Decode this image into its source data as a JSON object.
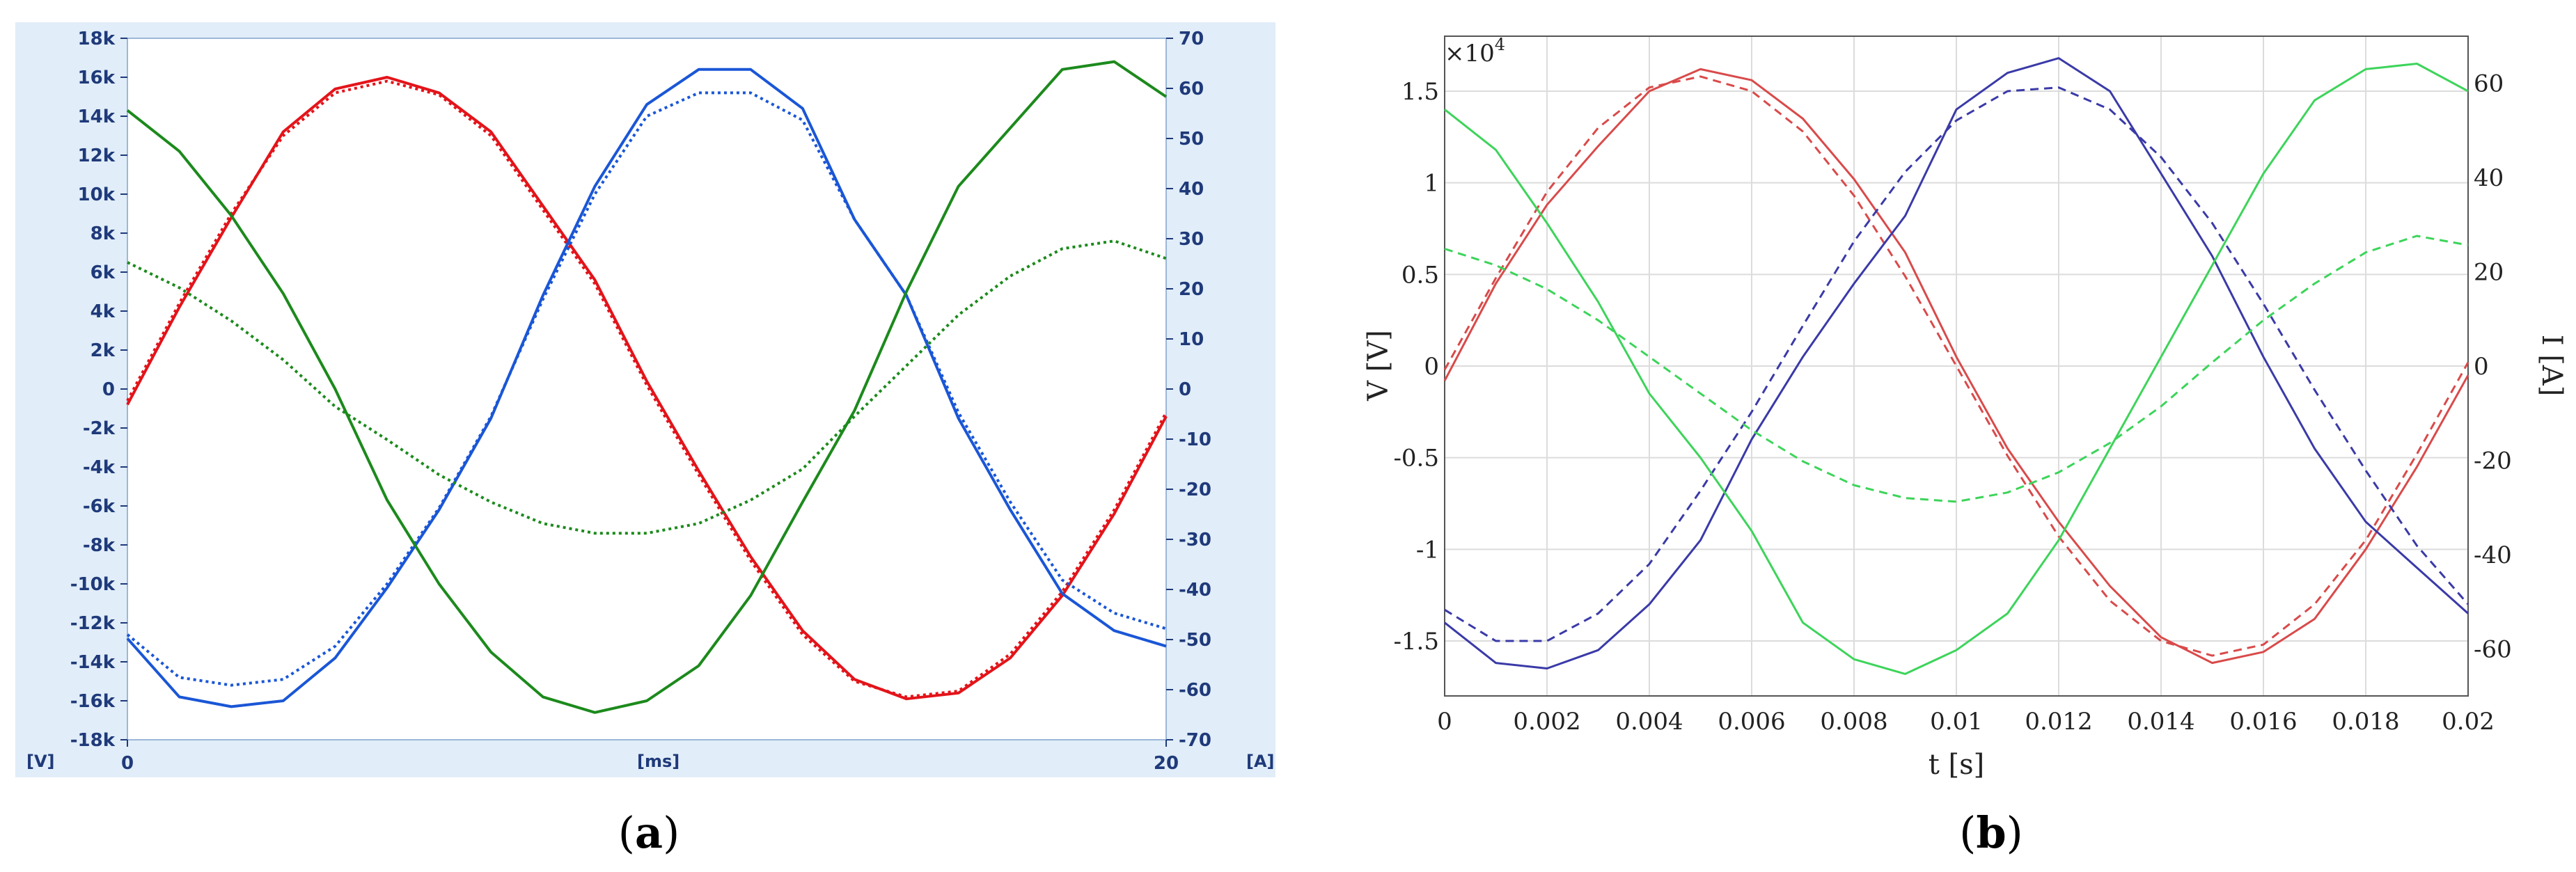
{
  "chart_data": [
    {
      "type": "line",
      "caption_open": "(",
      "caption_letter": "a",
      "caption_close": ")",
      "xlabel": "[ms]",
      "ylabel_left": "[V]",
      "ylabel_right": "[A]",
      "xlim": [
        0,
        20
      ],
      "ylim_left": [
        -18000,
        18000
      ],
      "ylim_right": [
        -70,
        70
      ],
      "x_ticks": [
        "0",
        "20"
      ],
      "y_ticks_left": [
        "18k",
        "16k",
        "14k",
        "12k",
        "10k",
        "8k",
        "6k",
        "4k",
        "2k",
        "0",
        "-2k",
        "-4k",
        "-6k",
        "-8k",
        "-10k",
        "-12k",
        "-14k",
        "-16k",
        "-18k"
      ],
      "y_ticks_right": [
        "70",
        "60",
        "50",
        "40",
        "30",
        "20",
        "10",
        "0",
        "-10",
        "-20",
        "-30",
        "-40",
        "-50",
        "-60",
        "-70"
      ],
      "grid": false,
      "background": "#ffffff",
      "frame_color": "#e1edf8",
      "series": [
        {
          "color": "#e3141a",
          "style": "solid",
          "axis": "left",
          "x": [
            0,
            1,
            2,
            3,
            4,
            5,
            6,
            7,
            8,
            9,
            10,
            11,
            12,
            13,
            14,
            15,
            16,
            17,
            18,
            19,
            20
          ],
          "y": [
            -800,
            4200,
            8800,
            13200,
            15400,
            16000,
            15200,
            13200,
            9400,
            5600,
            400,
            -4200,
            -8600,
            -12400,
            -14900,
            -15900,
            -15600,
            -13800,
            -10600,
            -6400,
            -1400
          ]
        },
        {
          "color": "#e3141a",
          "style": "dotted",
          "axis": "left",
          "x": [
            0,
            1,
            2,
            3,
            4,
            5,
            6,
            7,
            8,
            9,
            10,
            11,
            12,
            13,
            14,
            15,
            16,
            17,
            18,
            19,
            20
          ],
          "y": [
            -600,
            4400,
            9000,
            13000,
            15200,
            15800,
            15100,
            13000,
            9200,
            5400,
            200,
            -4400,
            -8800,
            -12600,
            -15000,
            -15800,
            -15500,
            -13600,
            -10400,
            -6200,
            -1200
          ]
        },
        {
          "color": "#1a56d6",
          "style": "solid",
          "axis": "left",
          "x": [
            0,
            1,
            2,
            3,
            4,
            5,
            6,
            7,
            8,
            9,
            10,
            11,
            12,
            13,
            14,
            15,
            16,
            17,
            18,
            19,
            20
          ],
          "y": [
            -12800,
            -15800,
            -16300,
            -16000,
            -13800,
            -10200,
            -6200,
            -1500,
            4800,
            10400,
            14600,
            16400,
            16400,
            14400,
            8700,
            4800,
            -1500,
            -6200,
            -10500,
            -12400,
            -13200
          ]
        },
        {
          "color": "#1a56d6",
          "style": "dotted",
          "axis": "left",
          "x": [
            0,
            1,
            2,
            3,
            4,
            5,
            6,
            7,
            8,
            9,
            10,
            11,
            12,
            13,
            14,
            15,
            16,
            17,
            18,
            19,
            20
          ],
          "y": [
            -12600,
            -14800,
            -15200,
            -14900,
            -13200,
            -10000,
            -6100,
            -1400,
            4600,
            10000,
            14000,
            15200,
            15200,
            13800,
            8700,
            4800,
            -1200,
            -5800,
            -9800,
            -11500,
            -12300
          ]
        },
        {
          "color": "#1c8a1c",
          "style": "solid",
          "axis": "left",
          "x": [
            0,
            1,
            2,
            3,
            4,
            5,
            6,
            7,
            8,
            9,
            10,
            11,
            12,
            13,
            14,
            15,
            16,
            17,
            18,
            19,
            20
          ],
          "y": [
            14300,
            12200,
            8900,
            4900,
            0,
            -5700,
            -10000,
            -13500,
            -15800,
            -16600,
            -16000,
            -14200,
            -10600,
            -5800,
            -1100,
            5000,
            10400,
            13400,
            16400,
            16800,
            15000
          ]
        },
        {
          "color": "#1c8a1c",
          "style": "dotted",
          "axis": "left",
          "x": [
            0,
            1,
            2,
            3,
            4,
            5,
            6,
            7,
            8,
            9,
            10,
            11,
            12,
            13,
            14,
            15,
            16,
            17,
            18,
            19,
            20
          ],
          "y": [
            6500,
            5200,
            3500,
            1500,
            -900,
            -2600,
            -4400,
            -5800,
            -6900,
            -7400,
            -7400,
            -6900,
            -5700,
            -4100,
            -1400,
            1200,
            3800,
            5800,
            7200,
            7600,
            6700
          ]
        }
      ]
    },
    {
      "type": "line",
      "caption_open": "(",
      "caption_letter": "b",
      "caption_close": ")",
      "scale_note": "×10",
      "scale_exp": "4",
      "xlabel": "t [s]",
      "ylabel_left": "V [V]",
      "ylabel_right": "I [A]",
      "xlim": [
        0,
        0.02
      ],
      "ylim_left": [
        -1.8,
        1.8
      ],
      "ylim_right": [
        -70,
        70
      ],
      "x_ticks": [
        "0",
        "0.002",
        "0.004",
        "0.006",
        "0.008",
        "0.01",
        "0.012",
        "0.014",
        "0.016",
        "0.018",
        "0.02"
      ],
      "y_ticks_left": [
        "1.5",
        "1",
        "0.5",
        "0",
        "-0.5",
        "-1",
        "-1.5"
      ],
      "y_ticks_right": [
        "60",
        "40",
        "20",
        "0",
        "-20",
        "-40",
        "-60"
      ],
      "grid": true,
      "series": [
        {
          "color": "#d94a4a",
          "style": "solid",
          "axis": "left",
          "x": [
            0,
            0.001,
            0.002,
            0.003,
            0.004,
            0.005,
            0.006,
            0.007,
            0.008,
            0.009,
            0.01,
            0.011,
            0.012,
            0.013,
            0.014,
            0.015,
            0.016,
            0.017,
            0.018,
            0.019,
            0.02
          ],
          "y": [
            -0.08,
            0.45,
            0.88,
            1.2,
            1.5,
            1.62,
            1.56,
            1.35,
            1.02,
            0.62,
            0.05,
            -0.45,
            -0.85,
            -1.2,
            -1.48,
            -1.62,
            -1.56,
            -1.38,
            -1.0,
            -0.55,
            -0.05
          ]
        },
        {
          "color": "#d94a4a",
          "style": "dashed",
          "axis": "left",
          "x": [
            0,
            0.001,
            0.002,
            0.003,
            0.004,
            0.005,
            0.006,
            0.007,
            0.008,
            0.009,
            0.01,
            0.011,
            0.012,
            0.013,
            0.014,
            0.015,
            0.016,
            0.017,
            0.018,
            0.019,
            0.02
          ],
          "y": [
            -0.02,
            0.48,
            0.95,
            1.3,
            1.52,
            1.58,
            1.5,
            1.28,
            0.93,
            0.49,
            0.0,
            -0.49,
            -0.93,
            -1.28,
            -1.5,
            -1.58,
            -1.52,
            -1.3,
            -0.95,
            -0.48,
            0.02
          ]
        },
        {
          "color": "#3a3aa8",
          "style": "solid",
          "axis": "left",
          "x": [
            0,
            0.001,
            0.002,
            0.003,
            0.004,
            0.005,
            0.006,
            0.007,
            0.008,
            0.009,
            0.01,
            0.011,
            0.012,
            0.013,
            0.014,
            0.015,
            0.016,
            0.017,
            0.018,
            0.019,
            0.02
          ],
          "y": [
            -1.4,
            -1.62,
            -1.65,
            -1.55,
            -1.3,
            -0.95,
            -0.4,
            0.05,
            0.45,
            0.82,
            1.4,
            1.6,
            1.68,
            1.5,
            1.05,
            0.6,
            0.05,
            -0.45,
            -0.85,
            -1.1,
            -1.35
          ]
        },
        {
          "color": "#3a3aa8",
          "style": "dashed",
          "axis": "left",
          "x": [
            0,
            0.001,
            0.002,
            0.003,
            0.004,
            0.005,
            0.006,
            0.007,
            0.008,
            0.009,
            0.01,
            0.011,
            0.012,
            0.013,
            0.014,
            0.015,
            0.016,
            0.017,
            0.018,
            0.019,
            0.02
          ],
          "y": [
            -1.33,
            -1.5,
            -1.5,
            -1.35,
            -1.08,
            -0.68,
            -0.25,
            0.22,
            0.68,
            1.06,
            1.34,
            1.5,
            1.52,
            1.4,
            1.14,
            0.78,
            0.34,
            -0.13,
            -0.57,
            -0.98,
            -1.3
          ]
        },
        {
          "color": "#3dd45a",
          "style": "solid",
          "axis": "left",
          "x": [
            0,
            0.001,
            0.002,
            0.003,
            0.004,
            0.005,
            0.006,
            0.007,
            0.008,
            0.009,
            0.01,
            0.011,
            0.012,
            0.013,
            0.014,
            0.015,
            0.016,
            0.017,
            0.018,
            0.019,
            0.02
          ],
          "y": [
            1.4,
            1.18,
            0.78,
            0.35,
            -0.15,
            -0.5,
            -0.9,
            -1.4,
            -1.6,
            -1.68,
            -1.55,
            -1.35,
            -0.95,
            -0.45,
            0.05,
            0.55,
            1.05,
            1.45,
            1.62,
            1.65,
            1.5
          ]
        },
        {
          "color": "#3dd45a",
          "style": "dashed",
          "axis": "left",
          "x": [
            0,
            0.001,
            0.002,
            0.003,
            0.004,
            0.005,
            0.006,
            0.007,
            0.008,
            0.009,
            0.01,
            0.011,
            0.012,
            0.013,
            0.014,
            0.015,
            0.016,
            0.017,
            0.018,
            0.019,
            0.02
          ],
          "y": [
            0.64,
            0.55,
            0.42,
            0.25,
            0.05,
            -0.15,
            -0.35,
            -0.52,
            -0.65,
            -0.72,
            -0.74,
            -0.69,
            -0.58,
            -0.42,
            -0.22,
            0.02,
            0.25,
            0.45,
            0.62,
            0.71,
            0.66
          ]
        }
      ]
    }
  ]
}
